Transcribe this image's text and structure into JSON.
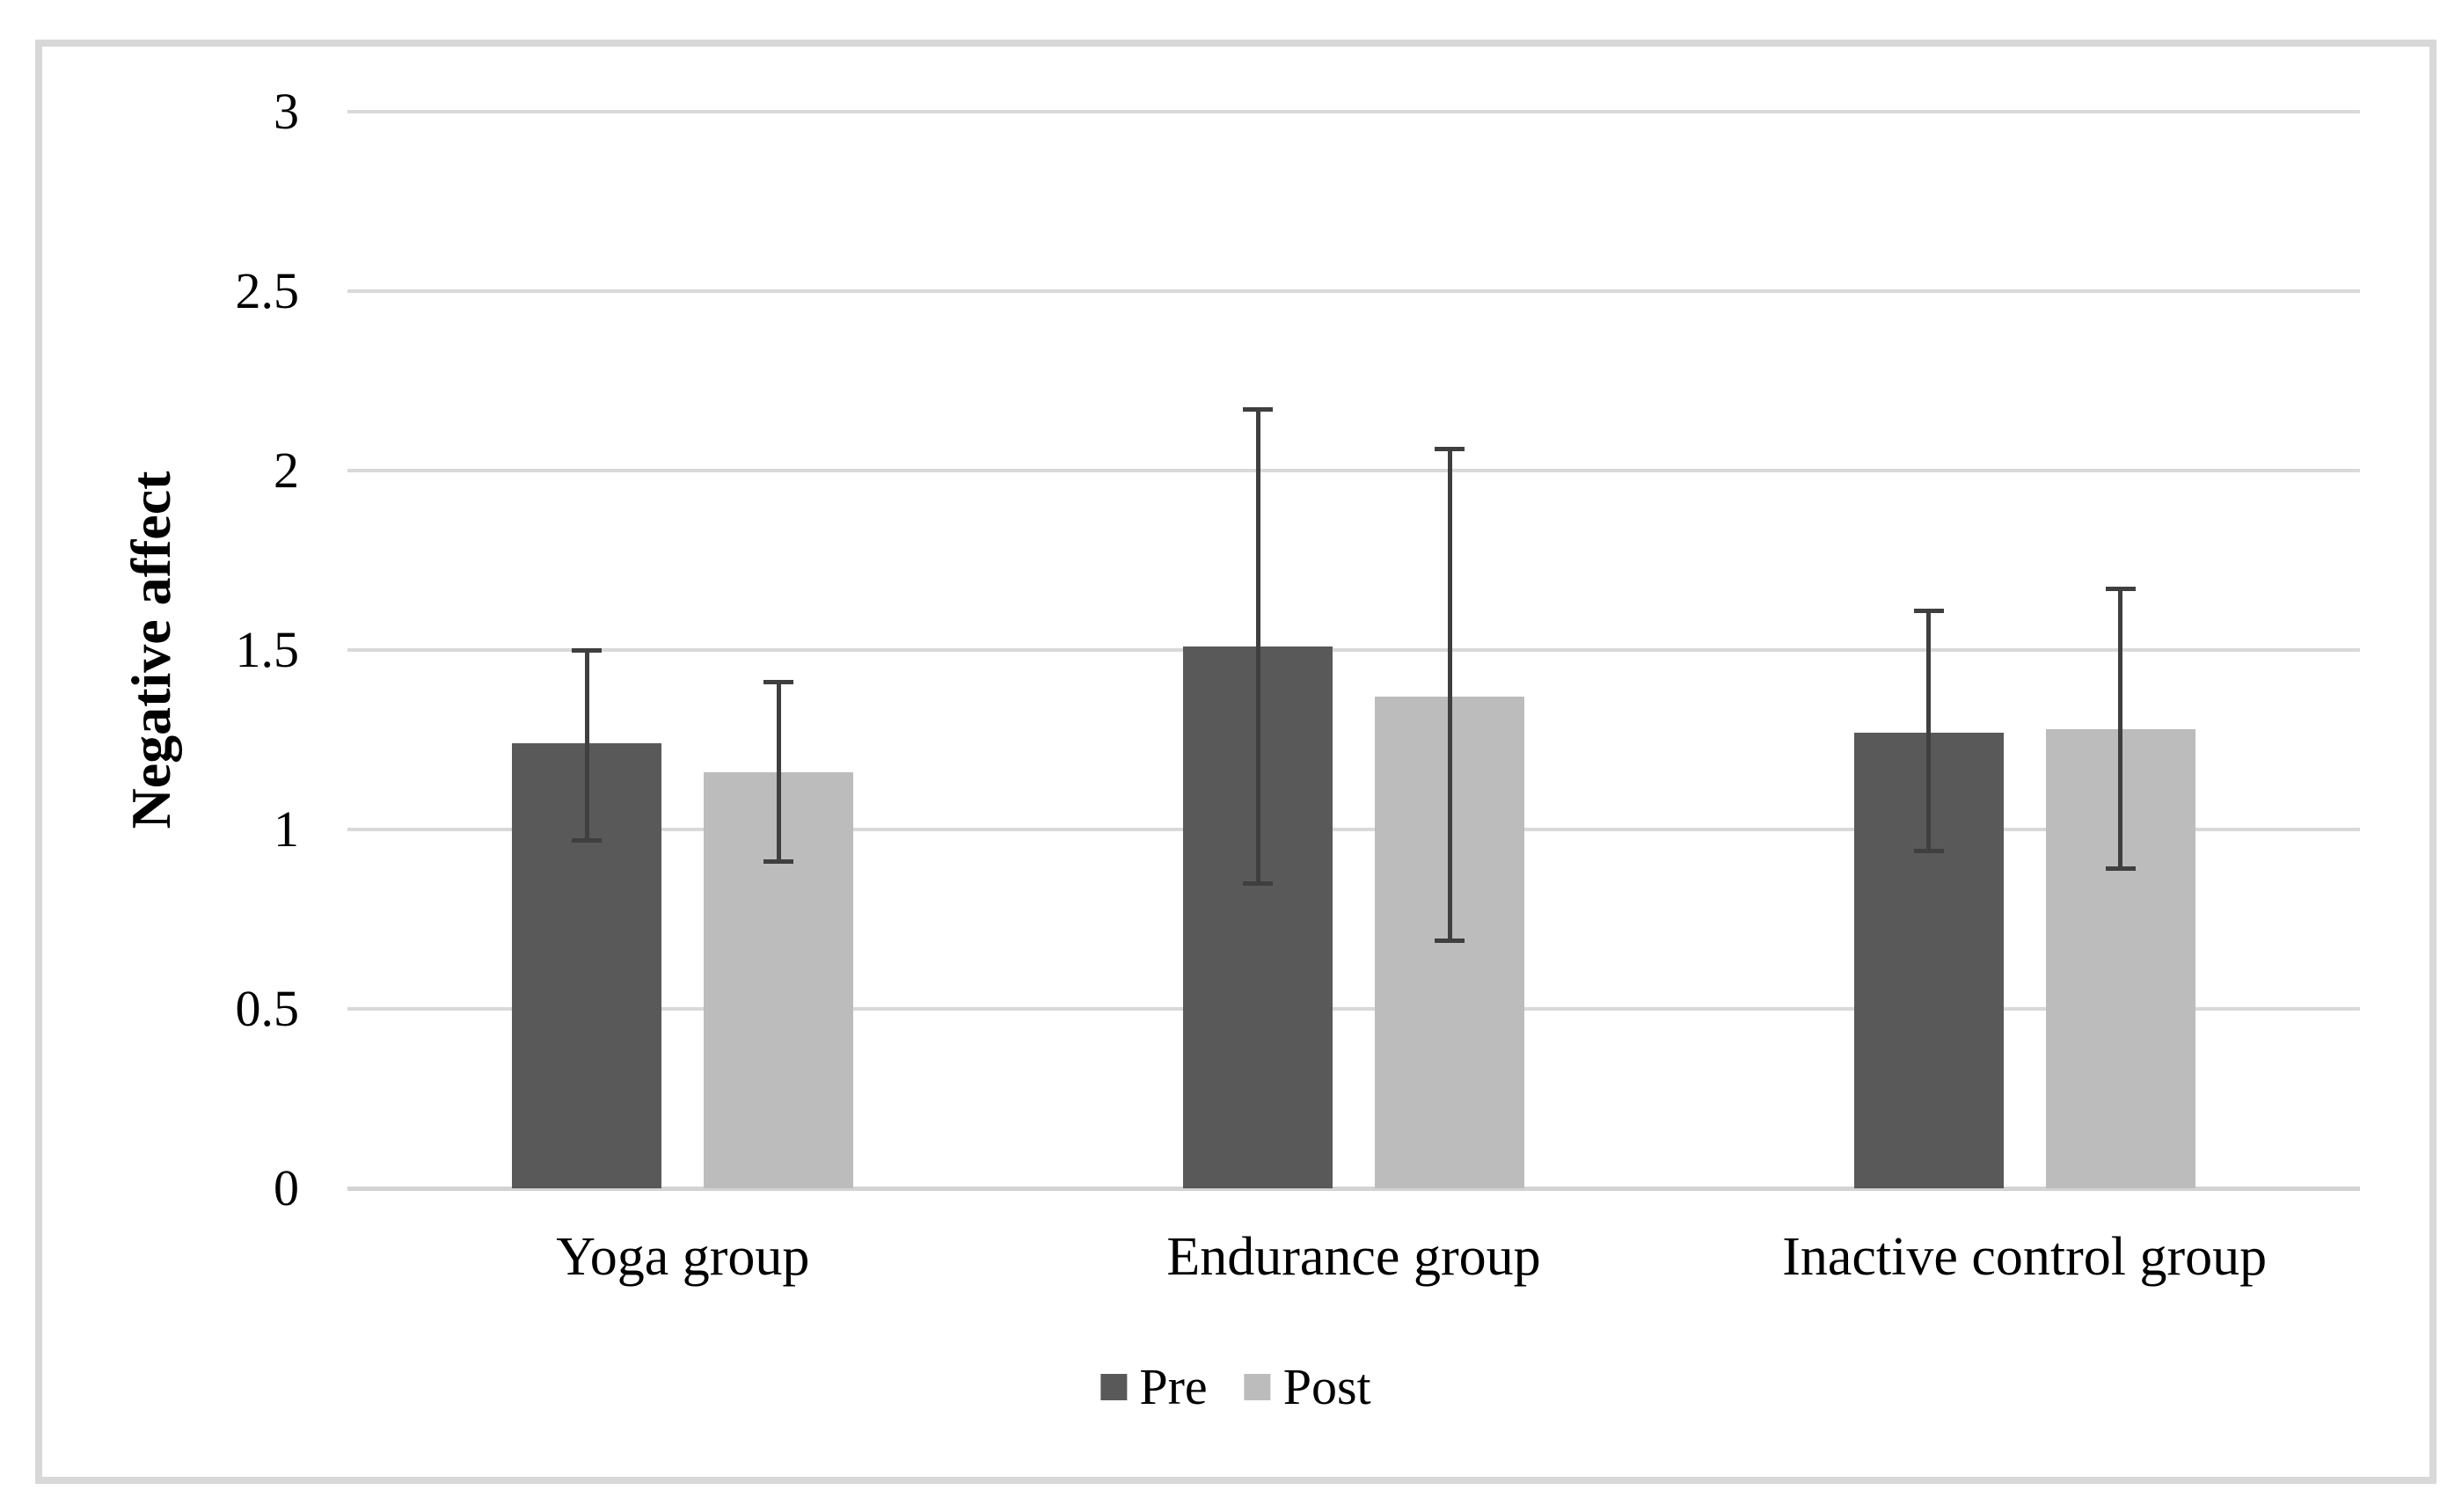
{
  "figure": {
    "border_color": "#d8d8d8",
    "background": "#ffffff"
  },
  "colors": {
    "gridline": "#d9d9d9",
    "axis_line": "#d3d3d3",
    "error_bar": "#3f3f3f",
    "text": "#000000"
  },
  "legend": {
    "items": [
      {
        "label": "Pre",
        "color": "#595959"
      },
      {
        "label": "Post",
        "color": "#bcbcbc"
      }
    ]
  },
  "chart_data": {
    "type": "bar",
    "title": "",
    "categories": [
      "Yoga group",
      "Endurance group",
      "Inactive control group"
    ],
    "series": [
      {
        "name": "Pre",
        "color": "#595959",
        "values": [
          1.24,
          1.51,
          1.27
        ],
        "error_low": [
          0.97,
          0.85,
          0.94
        ],
        "error_high": [
          1.5,
          2.17,
          1.61
        ]
      },
      {
        "name": "Post",
        "color": "#bcbcbc",
        "values": [
          1.16,
          1.37,
          1.28
        ],
        "error_low": [
          0.91,
          0.69,
          0.89
        ],
        "error_high": [
          1.41,
          2.06,
          1.67
        ]
      }
    ],
    "xlabel": "",
    "ylabel": "Negative affect",
    "ylim": [
      0,
      3
    ],
    "ytick_step": 0.5,
    "ytick_labels": [
      "0",
      "0.5",
      "1",
      "1.5",
      "2",
      "2.5",
      "3"
    ],
    "grid": true,
    "legend_position": "bottom-center",
    "error_bars": true
  }
}
